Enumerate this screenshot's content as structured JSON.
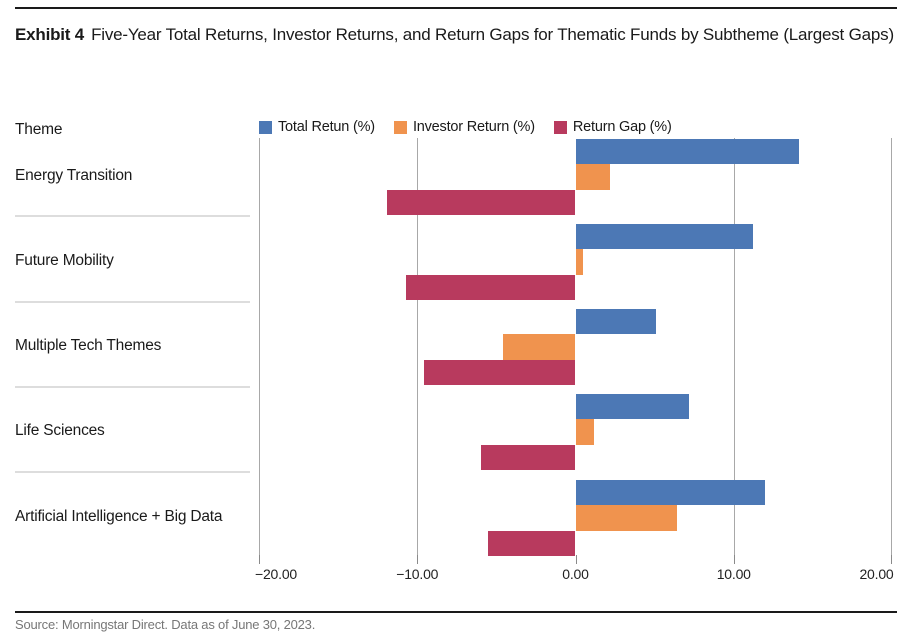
{
  "title": {
    "exhibit_label": "Exhibit 4",
    "text": "Five-Year Total Returns, Investor Returns, and Return Gaps for Thematic Funds by Subtheme (Largest Gaps)"
  },
  "theme_header": "Theme",
  "chart_data": {
    "type": "bar",
    "orientation": "horizontal",
    "categories": [
      "Energy Transition",
      "Future Mobility",
      "Multiple Tech Themes",
      "Life Sciences",
      "Artificial Intelligence + Big Data"
    ],
    "series": [
      {
        "name": "Total Retun (%)",
        "color": "#4C78B5",
        "values": [
          14.1,
          11.2,
          5.1,
          7.2,
          12.0
        ]
      },
      {
        "name": "Investor Return (%)",
        "color": "#F0934E",
        "values": [
          2.2,
          0.5,
          -4.6,
          1.2,
          6.4
        ]
      },
      {
        "name": "Return Gap (%)",
        "color": "#B83A5E",
        "values": [
          -11.9,
          -10.7,
          -9.6,
          -6.0,
          -5.5
        ]
      }
    ],
    "xlim": [
      -20,
      20
    ],
    "x_tick_values": [
      -20,
      -10,
      0,
      10,
      20
    ],
    "x_ticks": [
      "−20.00",
      "−10.00",
      "0.00",
      "10.00",
      "20.00"
    ],
    "grid": "vertical",
    "legend_position": "top"
  },
  "source": "Source: Morningstar Direct. Data as of June 30, 2023."
}
